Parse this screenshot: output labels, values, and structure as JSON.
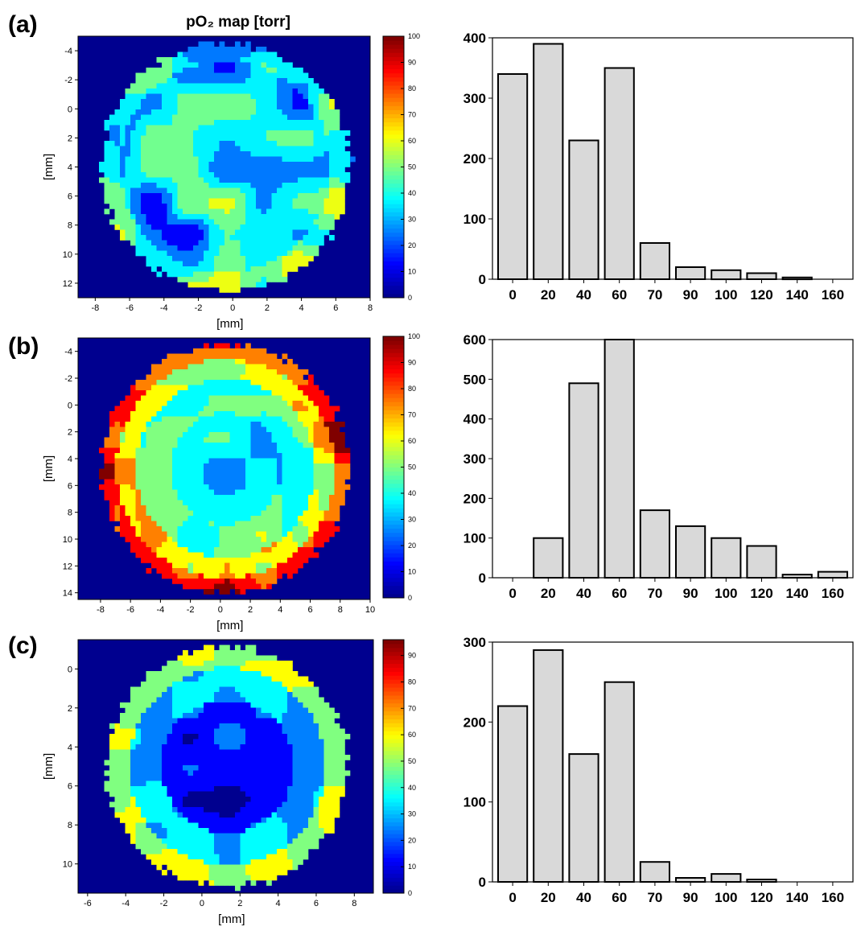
{
  "map_title": "pO₂ map [torr]",
  "unit_label": "[mm]",
  "colors": {
    "map_background": "#00008f",
    "bar_fill": "#d9d9d9",
    "bar_stroke": "#000000",
    "colormap": [
      "#00008f",
      "#0000ff",
      "#0080ff",
      "#00ffff",
      "#80ff80",
      "#ffff00",
      "#ff8000",
      "#ff0000",
      "#800000"
    ]
  },
  "panels": [
    {
      "label": "(a)",
      "map": {
        "x_ticks": [
          "-8",
          "-6",
          "-4",
          "-2",
          "0",
          "2",
          "4",
          "6",
          "8"
        ],
        "x_range": [
          -9,
          8
        ],
        "y_ticks": [
          "-4",
          "-2",
          "0",
          "2",
          "4",
          "6",
          "8",
          "10",
          "12"
        ],
        "y_range": [
          -5,
          13
        ],
        "colorbar_ticks": [
          "100",
          "90",
          "80",
          "70",
          "60",
          "50",
          "40",
          "30",
          "20",
          "10",
          "0"
        ],
        "colorbar_range": [
          0,
          100
        ]
      },
      "chart_data": {
        "type": "bar",
        "categories": [
          "0",
          "20",
          "40",
          "60",
          "70",
          "90",
          "100",
          "120",
          "140",
          "160"
        ],
        "values": [
          340,
          390,
          230,
          350,
          60,
          20,
          15,
          10,
          3,
          0
        ],
        "yticks": [
          "0",
          "100",
          "200",
          "300",
          "400"
        ],
        "ylim": [
          0,
          400
        ]
      }
    },
    {
      "label": "(b)",
      "map": {
        "x_ticks": [
          "-8",
          "-6",
          "-4",
          "-2",
          "0",
          "2",
          "4",
          "6",
          "8",
          "10"
        ],
        "x_range": [
          -9.5,
          10
        ],
        "y_ticks": [
          "-4",
          "-2",
          "0",
          "2",
          "4",
          "6",
          "8",
          "10",
          "12",
          "14"
        ],
        "y_range": [
          -5,
          14.5
        ],
        "colorbar_ticks": [
          "100",
          "90",
          "80",
          "70",
          "60",
          "50",
          "40",
          "30",
          "20",
          "10",
          "0"
        ],
        "colorbar_range": [
          0,
          100
        ]
      },
      "chart_data": {
        "type": "bar",
        "categories": [
          "0",
          "20",
          "40",
          "60",
          "70",
          "90",
          "100",
          "120",
          "140",
          "160"
        ],
        "values": [
          0,
          100,
          490,
          600,
          170,
          130,
          100,
          80,
          8,
          15
        ],
        "yticks": [
          "0",
          "100",
          "200",
          "300",
          "400",
          "500",
          "600"
        ],
        "ylim": [
          0,
          600
        ]
      }
    },
    {
      "label": "(c)",
      "map": {
        "x_ticks": [
          "-6",
          "-4",
          "-2",
          "0",
          "2",
          "4",
          "6",
          "8"
        ],
        "x_range": [
          -6.5,
          9
        ],
        "y_ticks": [
          "0",
          "2",
          "4",
          "6",
          "8",
          "10"
        ],
        "y_range": [
          -1.5,
          11.5
        ],
        "colorbar_ticks": [
          "90",
          "80",
          "70",
          "60",
          "50",
          "40",
          "30",
          "20",
          "10",
          "0"
        ],
        "colorbar_range": [
          0,
          96
        ]
      },
      "chart_data": {
        "type": "bar",
        "categories": [
          "0",
          "20",
          "40",
          "60",
          "70",
          "90",
          "100",
          "120",
          "140",
          "160"
        ],
        "values": [
          220,
          290,
          160,
          250,
          25,
          5,
          10,
          3,
          0,
          0
        ],
        "yticks": [
          "0",
          "100",
          "200",
          "300"
        ],
        "ylim": [
          0,
          300
        ]
      }
    }
  ]
}
